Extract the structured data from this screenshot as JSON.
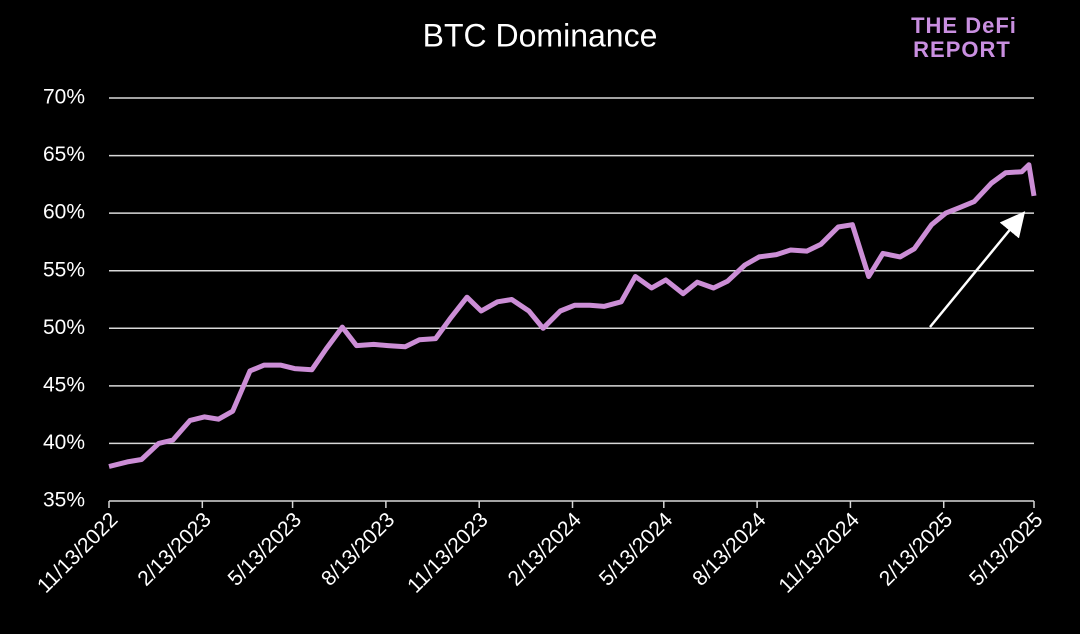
{
  "chart_data": {
    "type": "line",
    "title": "BTC Dominance",
    "logo": [
      "THE DeFi",
      "REPORT"
    ],
    "x": [
      "11/13/2022",
      "12/1/2022",
      "12/15/2022",
      "1/1/2023",
      "1/15/2023",
      "2/1/2023",
      "2/15/2023",
      "3/1/2023",
      "3/15/2023",
      "4/1/2023",
      "4/15/2023",
      "5/1/2023",
      "5/15/2023",
      "6/1/2023",
      "6/15/2023",
      "7/1/2023",
      "7/15/2023",
      "8/1/2023",
      "8/15/2023",
      "9/1/2023",
      "9/15/2023",
      "10/1/2023",
      "10/15/2023",
      "11/1/2023",
      "11/15/2023",
      "12/1/2023",
      "12/15/2023",
      "1/1/2024",
      "1/15/2024",
      "2/1/2024",
      "2/15/2024",
      "3/1/2024",
      "3/15/2024",
      "4/1/2024",
      "4/15/2024",
      "5/1/2024",
      "5/15/2024",
      "6/1/2024",
      "6/15/2024",
      "7/1/2024",
      "7/15/2024",
      "8/1/2024",
      "8/15/2024",
      "9/1/2024",
      "9/15/2024",
      "10/1/2024",
      "10/15/2024",
      "11/1/2024",
      "11/15/2024",
      "12/1/2024",
      "12/15/2024",
      "1/1/2025",
      "1/15/2025",
      "2/1/2025",
      "2/15/2025",
      "3/1/2025",
      "3/15/2025",
      "4/1/2025",
      "4/15/2025",
      "5/1/2025",
      "5/8/2025",
      "5/13/2025"
    ],
    "series": [
      {
        "name": "BTC Dominance",
        "color": "#cc8ed6",
        "values": [
          38,
          38.4,
          38.6,
          40,
          40.3,
          42,
          42.3,
          42.1,
          42.8,
          46.3,
          46.8,
          46.8,
          46.5,
          46.4,
          48.2,
          50.1,
          48.5,
          48.6,
          48.5,
          48.4,
          49,
          49.1,
          50.8,
          52.7,
          51.5,
          52.3,
          52.5,
          51.5,
          50,
          51.5,
          52,
          52,
          51.9,
          52.3,
          54.5,
          53.5,
          54.2,
          53,
          54,
          53.5,
          54.1,
          55.5,
          56.2,
          56.4,
          56.8,
          56.7,
          57.3,
          58.8,
          59,
          54.5,
          56.5,
          56.2,
          56.9,
          59,
          60,
          60.5,
          61,
          62.6,
          63.5,
          63.6,
          64.2,
          61.5
        ]
      }
    ],
    "xlim": [
      "11/13/2022",
      "5/13/2025"
    ],
    "xticks": [
      "11/13/2022",
      "2/13/2023",
      "5/13/2023",
      "8/13/2023",
      "11/13/2023",
      "2/13/2024",
      "5/13/2024",
      "8/13/2024",
      "11/13/2024",
      "2/13/2025",
      "5/13/2025"
    ],
    "ylim": [
      35,
      70
    ],
    "yticks": [
      {
        "value": 35,
        "label": "35%"
      },
      {
        "value": 40,
        "label": "40%"
      },
      {
        "value": 45,
        "label": "45%"
      },
      {
        "value": 50,
        "label": "50%"
      },
      {
        "value": 55,
        "label": "55%"
      },
      {
        "value": 60,
        "label": "60%"
      },
      {
        "value": 65,
        "label": "65%"
      },
      {
        "value": 70,
        "label": "70%"
      }
    ],
    "grid": true
  }
}
